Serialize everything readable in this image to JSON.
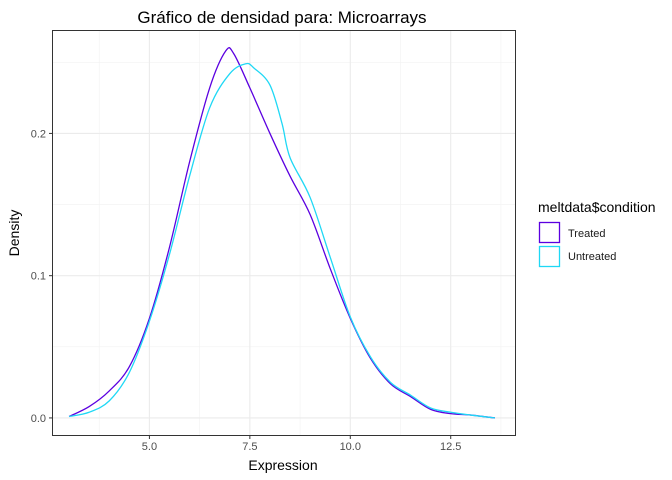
{
  "chart_data": {
    "type": "line",
    "title": "Gráfico de densidad para: Microarrays",
    "xlabel": "Expression",
    "ylabel": "Density",
    "xlim": [
      2.6,
      14.1
    ],
    "ylim": [
      -0.012,
      0.272
    ],
    "x_ticks": [
      5.0,
      7.5,
      10.0,
      12.5
    ],
    "x_tick_labels": [
      "5.0",
      "7.5",
      "10.0",
      "12.5"
    ],
    "y_ticks": [
      0.0,
      0.1,
      0.2
    ],
    "y_tick_labels": [
      "0.0",
      "0.1",
      "0.2"
    ],
    "grid": true,
    "legend": {
      "title": "meltdata$condition",
      "position": "right"
    },
    "series": [
      {
        "name": "Treated",
        "color": "#5b00e0",
        "x": [
          3.0,
          3.5,
          4.0,
          4.5,
          5.0,
          5.5,
          6.0,
          6.5,
          6.9,
          7.1,
          7.5,
          8.0,
          8.5,
          9.0,
          9.5,
          10.0,
          10.5,
          11.0,
          11.5,
          12.0,
          12.5,
          13.0,
          13.6
        ],
        "y": [
          0.001,
          0.008,
          0.019,
          0.036,
          0.07,
          0.12,
          0.18,
          0.232,
          0.258,
          0.256,
          0.232,
          0.2,
          0.17,
          0.143,
          0.105,
          0.07,
          0.042,
          0.024,
          0.015,
          0.006,
          0.003,
          0.002,
          0.0
        ]
      },
      {
        "name": "Untreated",
        "color": "#1fd8f5",
        "x": [
          3.0,
          3.5,
          4.0,
          4.5,
          5.0,
          5.5,
          6.0,
          6.5,
          7.0,
          7.4,
          7.6,
          8.0,
          8.3,
          8.5,
          9.0,
          9.5,
          10.0,
          10.5,
          11.0,
          11.5,
          12.0,
          12.5,
          13.0,
          13.6
        ],
        "y": [
          0.001,
          0.004,
          0.012,
          0.032,
          0.068,
          0.115,
          0.17,
          0.218,
          0.242,
          0.249,
          0.246,
          0.234,
          0.207,
          0.183,
          0.155,
          0.113,
          0.071,
          0.043,
          0.025,
          0.016,
          0.007,
          0.004,
          0.002,
          0.0
        ]
      }
    ]
  }
}
